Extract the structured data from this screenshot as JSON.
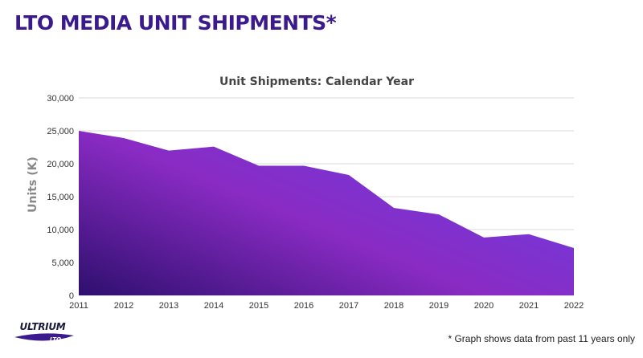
{
  "slide": {
    "title": "LTO MEDIA UNIT SHIPMENTS*",
    "footnote": "* Graph shows data from past 11 years only",
    "logo_text": "ULTRIUM",
    "logo_subtext": "LTO"
  },
  "colors": {
    "title": "#3a1a8c",
    "area_dark": "#2e0f6e",
    "area_mid": "#8a2bc4",
    "area_light": "#6a3de0",
    "grid": "#d9d9d9",
    "axis_text": "#333333"
  },
  "chart_data": {
    "type": "area",
    "title": "Unit Shipments: Calendar Year",
    "xlabel": "",
    "ylabel": "Units (K)",
    "x": [
      "2011",
      "2012",
      "2013",
      "2014",
      "2015",
      "2016",
      "2017",
      "2018",
      "2019",
      "2020",
      "2021",
      "2022"
    ],
    "values": [
      25000,
      23900,
      22000,
      22600,
      19700,
      19700,
      18300,
      13300,
      12300,
      8800,
      9300,
      7200
    ],
    "ylim": [
      0,
      30000
    ],
    "yticks": [
      0,
      5000,
      10000,
      15000,
      20000,
      25000,
      30000
    ],
    "ytick_labels": [
      "0",
      "5,000",
      "10,000",
      "15,000",
      "20,000",
      "25,000",
      "30,000"
    ],
    "grid": true,
    "legend": "none"
  }
}
